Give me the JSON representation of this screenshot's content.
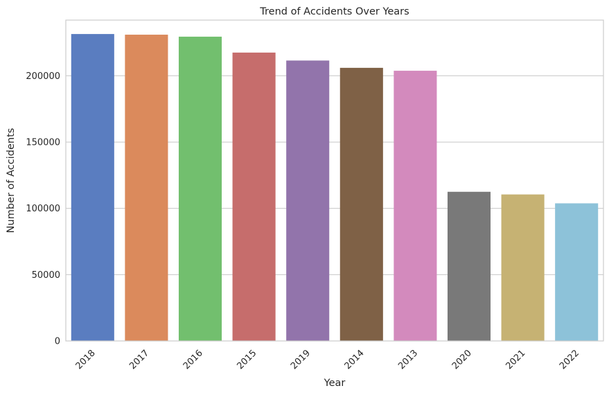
{
  "chart_data": {
    "type": "bar",
    "title": "Trend of Accidents Over Years",
    "xlabel": "Year",
    "ylabel": "Number of Accidents",
    "categories": [
      "2018",
      "2017",
      "2016",
      "2015",
      "2019",
      "2014",
      "2013",
      "2020",
      "2021",
      "2022"
    ],
    "values": [
      231500,
      231000,
      229500,
      217500,
      211500,
      206000,
      203800,
      112500,
      110500,
      103800
    ],
    "colors": [
      "#5a7dc0",
      "#db8a5c",
      "#72bf6e",
      "#c66d6c",
      "#9274ab",
      "#7f6146",
      "#d38abd",
      "#797979",
      "#c6b273",
      "#8dc2d9"
    ],
    "ylim": [
      0,
      242000
    ],
    "yticks": [
      0,
      50000,
      100000,
      150000,
      200000
    ],
    "ytick_labels": [
      "0",
      "50000",
      "100000",
      "150000",
      "200000"
    ],
    "grid": true,
    "xtick_rotation": -45
  }
}
